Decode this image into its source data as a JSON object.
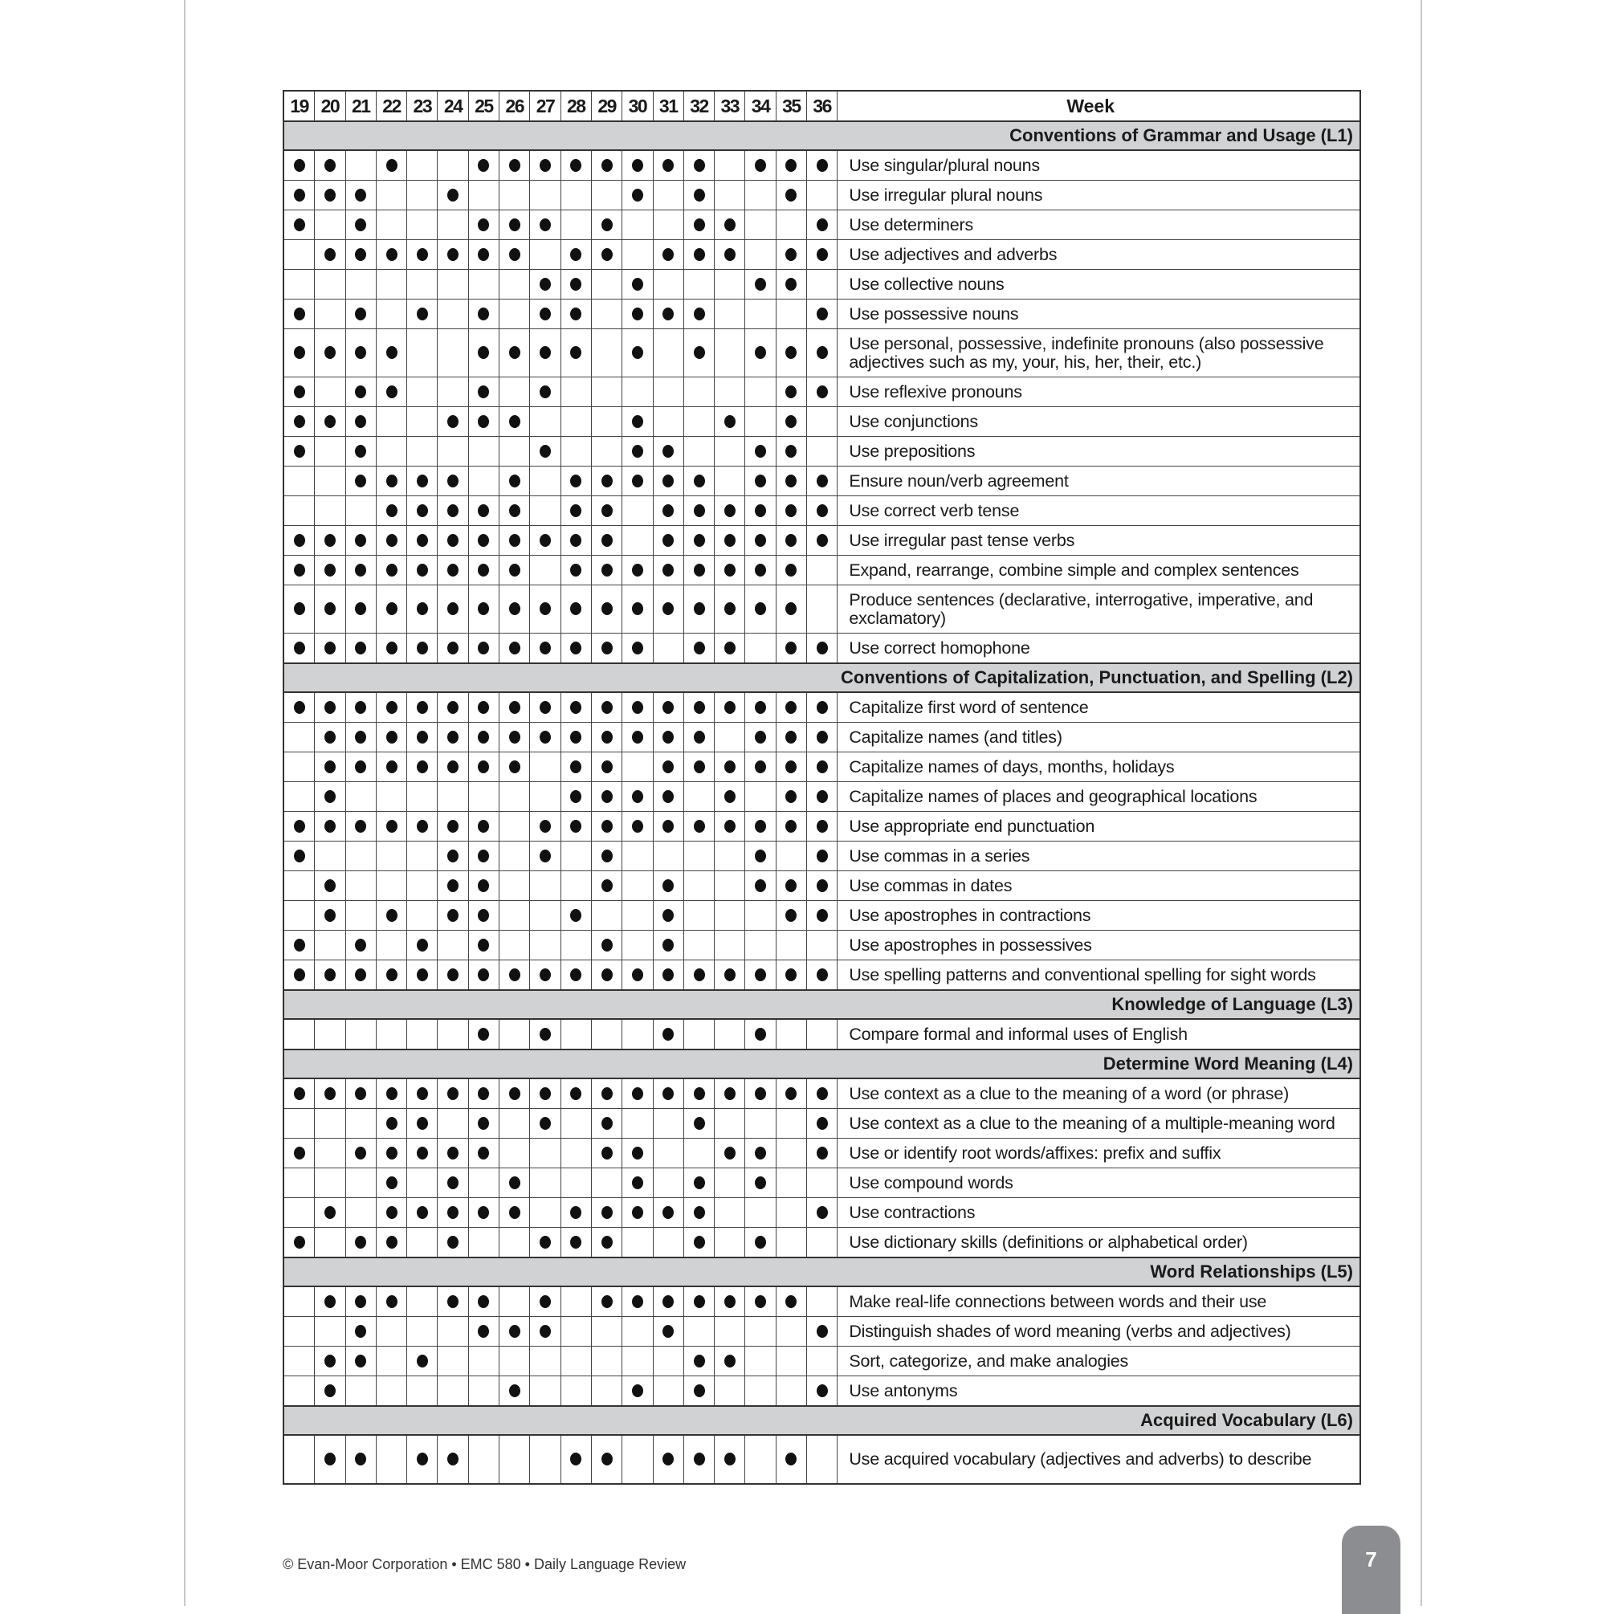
{
  "header": {
    "weeks": [
      19,
      20,
      21,
      22,
      23,
      24,
      25,
      26,
      27,
      28,
      29,
      30,
      31,
      32,
      33,
      34,
      35,
      36
    ],
    "week_label": "Week"
  },
  "sections": [
    {
      "title": "Conventions of Grammar and Usage (L1)",
      "items": [
        {
          "label": "Use singular/plural nouns",
          "weeks": [
            19,
            20,
            22,
            25,
            26,
            27,
            28,
            29,
            30,
            31,
            32,
            34,
            35,
            36
          ]
        },
        {
          "label": "Use irregular plural nouns",
          "weeks": [
            19,
            20,
            21,
            24,
            30,
            32,
            35
          ]
        },
        {
          "label": "Use determiners",
          "weeks": [
            19,
            21,
            25,
            26,
            27,
            29,
            32,
            33,
            36
          ]
        },
        {
          "label": "Use adjectives and adverbs",
          "weeks": [
            20,
            21,
            22,
            23,
            24,
            25,
            26,
            28,
            29,
            31,
            32,
            33,
            35,
            36
          ]
        },
        {
          "label": "Use collective nouns",
          "weeks": [
            27,
            28,
            30,
            34,
            35
          ]
        },
        {
          "label": "Use possessive nouns",
          "weeks": [
            19,
            21,
            23,
            25,
            27,
            28,
            30,
            31,
            32,
            36
          ]
        },
        {
          "label": "Use personal, possessive, indefinite pronouns (also possessive adjectives such as my, your, his, her, their, etc.)",
          "weeks": [
            19,
            20,
            21,
            22,
            25,
            26,
            27,
            28,
            30,
            32,
            34,
            35,
            36
          ],
          "double": true
        },
        {
          "label": "Use reflexive pronouns",
          "weeks": [
            19,
            21,
            22,
            25,
            27,
            35,
            36
          ]
        },
        {
          "label": "Use conjunctions",
          "weeks": [
            19,
            20,
            21,
            24,
            25,
            26,
            30,
            33,
            35
          ]
        },
        {
          "label": "Use prepositions",
          "weeks": [
            19,
            21,
            27,
            30,
            31,
            34,
            35
          ]
        },
        {
          "label": "Ensure noun/verb agreement",
          "weeks": [
            21,
            22,
            23,
            24,
            26,
            28,
            29,
            30,
            31,
            32,
            34,
            35,
            36
          ]
        },
        {
          "label": "Use correct verb tense",
          "weeks": [
            22,
            23,
            24,
            25,
            26,
            28,
            29,
            31,
            32,
            33,
            34,
            35,
            36
          ]
        },
        {
          "label": "Use irregular past tense verbs",
          "weeks": [
            19,
            20,
            21,
            22,
            23,
            24,
            25,
            26,
            27,
            28,
            29,
            31,
            32,
            33,
            34,
            35,
            36
          ]
        },
        {
          "label": "Expand, rearrange, combine simple and complex sentences",
          "weeks": [
            19,
            20,
            21,
            22,
            23,
            24,
            25,
            26,
            28,
            29,
            30,
            31,
            32,
            33,
            34,
            35
          ]
        },
        {
          "label": "Produce sentences (declarative, interrogative, imperative, and exclamatory)",
          "weeks": [
            19,
            20,
            21,
            22,
            23,
            24,
            25,
            26,
            27,
            28,
            29,
            30,
            31,
            32,
            33,
            34,
            35
          ],
          "double": true
        },
        {
          "label": "Use correct homophone",
          "weeks": [
            19,
            20,
            21,
            22,
            23,
            24,
            25,
            26,
            27,
            28,
            29,
            30,
            32,
            33,
            35,
            36
          ]
        }
      ]
    },
    {
      "title": "Conventions of Capitalization, Punctuation, and Spelling (L2)",
      "items": [
        {
          "label": "Capitalize first word of sentence",
          "weeks": [
            19,
            20,
            21,
            22,
            23,
            24,
            25,
            26,
            27,
            28,
            29,
            30,
            31,
            32,
            33,
            34,
            35,
            36
          ]
        },
        {
          "label": "Capitalize names (and titles)",
          "weeks": [
            20,
            21,
            22,
            23,
            24,
            25,
            26,
            27,
            28,
            29,
            30,
            31,
            32,
            34,
            35,
            36
          ]
        },
        {
          "label": "Capitalize names of days, months, holidays",
          "weeks": [
            20,
            21,
            22,
            23,
            24,
            25,
            26,
            28,
            29,
            31,
            32,
            33,
            34,
            35,
            36
          ]
        },
        {
          "label": "Capitalize names of places and geographical locations",
          "weeks": [
            20,
            28,
            29,
            30,
            31,
            33,
            35,
            36
          ]
        },
        {
          "label": "Use appropriate end punctuation",
          "weeks": [
            19,
            20,
            21,
            22,
            23,
            24,
            25,
            27,
            28,
            29,
            30,
            31,
            32,
            33,
            34,
            35,
            36
          ]
        },
        {
          "label": "Use commas in a series",
          "weeks": [
            19,
            24,
            25,
            27,
            29,
            34,
            36
          ]
        },
        {
          "label": "Use commas in dates",
          "weeks": [
            20,
            24,
            25,
            29,
            31,
            34,
            35,
            36
          ]
        },
        {
          "label": "Use apostrophes in contractions",
          "weeks": [
            20,
            22,
            24,
            25,
            28,
            31,
            35,
            36
          ]
        },
        {
          "label": "Use apostrophes in possessives",
          "weeks": [
            19,
            21,
            23,
            25,
            29,
            31
          ]
        },
        {
          "label": "Use spelling patterns and conventional spelling for sight words",
          "weeks": [
            19,
            20,
            21,
            22,
            23,
            24,
            25,
            26,
            27,
            28,
            29,
            30,
            31,
            32,
            33,
            34,
            35,
            36
          ]
        }
      ]
    },
    {
      "title": "Knowledge of Language (L3)",
      "items": [
        {
          "label": "Compare formal and informal uses of English",
          "weeks": [
            25,
            27,
            31,
            34
          ]
        }
      ]
    },
    {
      "title": "Determine Word Meaning (L4)",
      "items": [
        {
          "label": "Use context as a clue to the meaning of a word (or phrase)",
          "weeks": [
            19,
            20,
            21,
            22,
            23,
            24,
            25,
            26,
            27,
            28,
            29,
            30,
            31,
            32,
            33,
            34,
            35,
            36
          ]
        },
        {
          "label": "Use context as a clue to the meaning of a multiple-meaning word",
          "weeks": [
            22,
            23,
            25,
            27,
            29,
            32,
            36
          ]
        },
        {
          "label": "Use or identify root words/affixes: prefix and suffix",
          "weeks": [
            19,
            21,
            22,
            23,
            24,
            25,
            29,
            30,
            33,
            34,
            36
          ]
        },
        {
          "label": "Use compound words",
          "weeks": [
            22,
            24,
            26,
            30,
            32,
            34
          ]
        },
        {
          "label": "Use contractions",
          "weeks": [
            20,
            22,
            23,
            24,
            25,
            26,
            28,
            29,
            30,
            31,
            32,
            36
          ]
        },
        {
          "label": "Use dictionary skills (definitions or alphabetical order)",
          "weeks": [
            19,
            21,
            22,
            24,
            27,
            28,
            29,
            32,
            34
          ]
        }
      ]
    },
    {
      "title": "Word Relationships (L5)",
      "items": [
        {
          "label": "Make real-life connections between words and their use",
          "weeks": [
            20,
            21,
            22,
            24,
            25,
            27,
            29,
            30,
            31,
            32,
            33,
            34,
            35
          ]
        },
        {
          "label": "Distinguish shades of word meaning (verbs and adjectives)",
          "weeks": [
            21,
            25,
            26,
            27,
            31,
            36
          ]
        },
        {
          "label": "Sort, categorize, and make analogies",
          "weeks": [
            20,
            21,
            23,
            32,
            33
          ]
        },
        {
          "label": "Use antonyms",
          "weeks": [
            20,
            26,
            30,
            32,
            36
          ]
        }
      ]
    },
    {
      "title": "Acquired Vocabulary (L6)",
      "items": [
        {
          "label": "Use acquired vocabulary (adjectives and adverbs) to describe",
          "weeks": [
            20,
            21,
            23,
            24,
            28,
            29,
            31,
            32,
            33,
            35
          ],
          "double": true
        }
      ]
    }
  ],
  "footer": {
    "text": "© Evan-Moor Corporation • EMC 580 • Daily Language Review",
    "page_number": "7"
  },
  "colors": {
    "section_bg": "#d1d2d4",
    "page_tab": "#8c8d90",
    "dot": "#111111"
  }
}
